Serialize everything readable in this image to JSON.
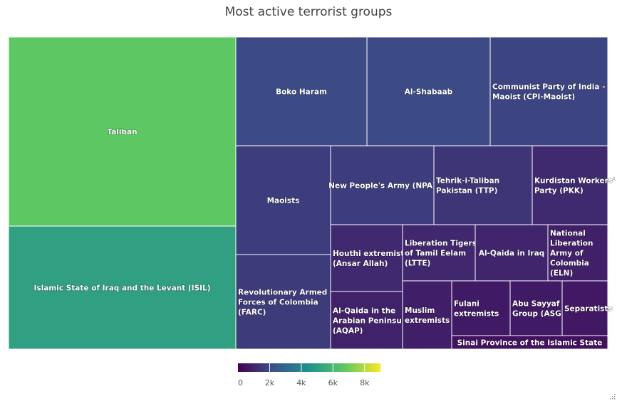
{
  "chart_data": {
    "type": "treemap",
    "title": "Most active terrorist groups",
    "colorscale": "viridis",
    "colorbar": {
      "range": [
        0,
        9000
      ],
      "ticks": [
        "0",
        "2k",
        "4k",
        "6k",
        "8k"
      ],
      "tick_values": [
        0,
        2000,
        4000,
        6000,
        8000
      ]
    },
    "items": [
      {
        "name": "Taliban",
        "value": 6700
      },
      {
        "name": "Islamic State of Iraq and the Levant (ISIL)",
        "value": 5050
      },
      {
        "name": "Boko Haram",
        "value": 2050
      },
      {
        "name": "Al-Shabaab",
        "value": 2050
      },
      {
        "name": "Communist Party of India - Maoist (CPI-Maoist)",
        "value": 1900
      },
      {
        "name": "Maoists",
        "value": 1650
      },
      {
        "name": "New People's Army (NPA)",
        "value": 1650
      },
      {
        "name": "Tehrik-i-Taliban Pakistan (TTP)",
        "value": 1450
      },
      {
        "name": "Kurdistan Workers' Party (PKK)",
        "value": 1150
      },
      {
        "name": "Revolutionary Armed Forces of Colombia (FARC)",
        "value": 1600
      },
      {
        "name": "Houthi extremists (Ansar Allah)",
        "value": 1100
      },
      {
        "name": "Liberation Tigers of Tamil Eelam (LTTE)",
        "value": 1050
      },
      {
        "name": "Al-Qaida in Iraq",
        "value": 1000
      },
      {
        "name": "National Liberation Army of Colombia (ELN)",
        "value": 850
      },
      {
        "name": "Al-Qaida in the Arabian Peninsula (AQAP)",
        "value": 900
      },
      {
        "name": "Muslim extremists",
        "value": 800
      },
      {
        "name": "Fulani extremists",
        "value": 700
      },
      {
        "name": "Abu Sayyaf Group (ASG)",
        "value": 700
      },
      {
        "name": "Separatists",
        "value": 600
      },
      {
        "name": "Sinai Province of the Islamic State",
        "value": 450
      }
    ]
  }
}
